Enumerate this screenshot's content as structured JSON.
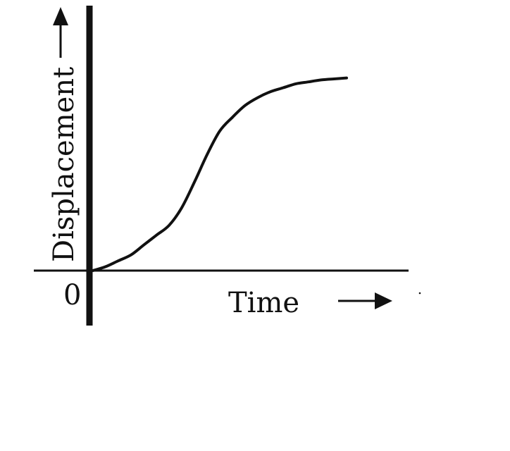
{
  "chart_data": {
    "type": "line",
    "title": "",
    "xlabel": "Time",
    "ylabel": "Displacement",
    "origin_label": "0",
    "xlim": [
      0,
      10
    ],
    "ylim": [
      0,
      10
    ],
    "grid": false,
    "legend": "none",
    "series": [
      {
        "name": "displacement",
        "x": [
          0,
          0.5,
          1,
          1.5,
          2,
          2.5,
          3,
          3.5,
          4,
          4.5,
          5,
          5.5,
          6,
          6.5,
          7,
          7.5,
          8,
          8.5,
          9,
          9.5,
          10
        ],
        "values": [
          0,
          0.2,
          0.5,
          0.8,
          1.3,
          1.8,
          2.3,
          3.2,
          4.5,
          5.9,
          7.1,
          7.8,
          8.4,
          8.8,
          9.1,
          9.3,
          9.5,
          9.6,
          9.7,
          9.75,
          9.8
        ]
      }
    ],
    "colors": {
      "axis": "#111111",
      "line": "#111111",
      "background": "#ffffff"
    }
  }
}
